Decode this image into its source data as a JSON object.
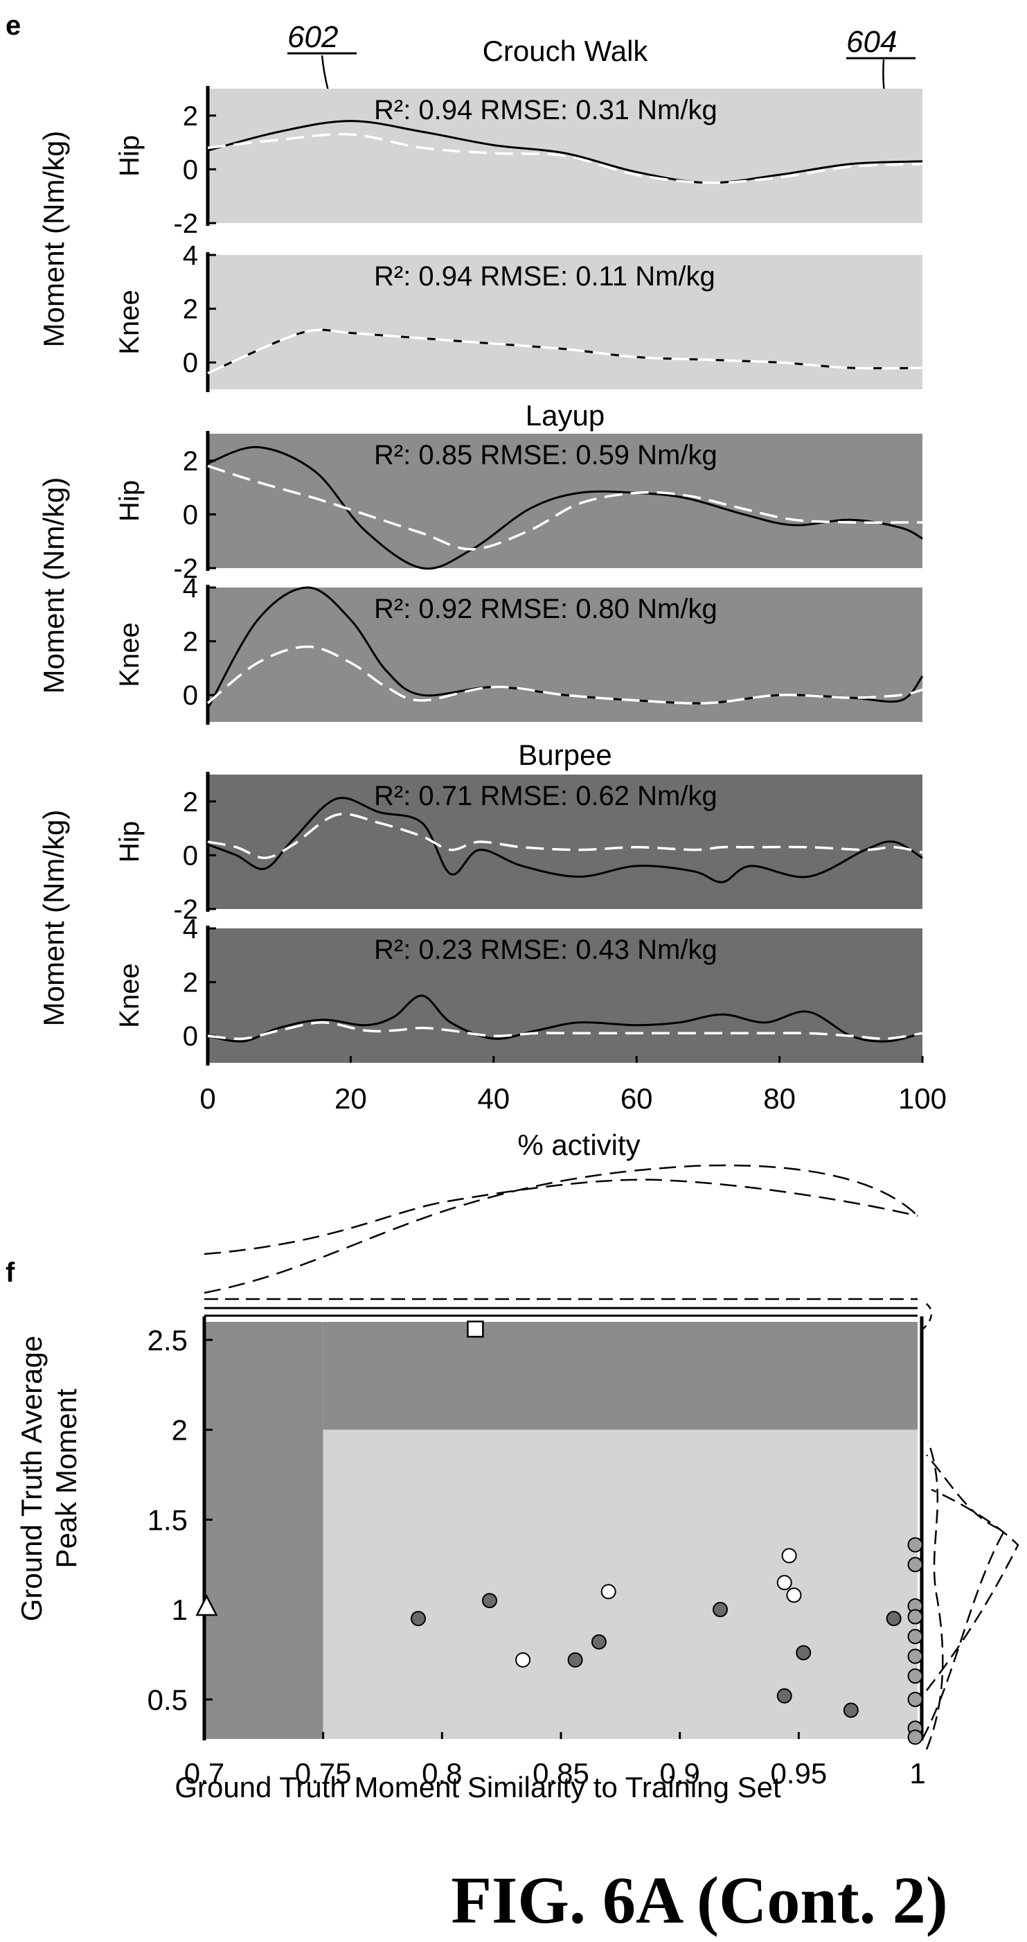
{
  "colors": {
    "light_bg": "#d4d4d4",
    "mid_bg": "#8c8c8c",
    "dark_bg": "#6e6e6e",
    "ground_truth_line": "#000000",
    "predicted_line": "#ffffff"
  },
  "panel_e": {
    "letter": "e",
    "ref_left": "602",
    "ref_right": "604",
    "x_ticks": [
      "0",
      "20",
      "40",
      "60",
      "80",
      "100"
    ],
    "x_label": "% activity",
    "y_label": "Moment (Nm/kg)"
  },
  "panel_f": {
    "letter": "f"
  },
  "figure_label": "FIG. 6A (Cont. 2)",
  "chart_data": [
    {
      "type": "line",
      "activity": "Crouch Walk",
      "joint": "Hip",
      "stat": "R²: 0.94 RMSE: 0.31 Nm/kg",
      "xlim": [
        0,
        100
      ],
      "ylim": [
        -2,
        3
      ],
      "y_ticks": [
        "2",
        "0",
        "-2"
      ],
      "x": [
        0,
        10,
        20,
        30,
        40,
        50,
        60,
        70,
        80,
        90,
        100
      ],
      "series": [
        {
          "values": [
            0.7,
            1.4,
            1.8,
            1.4,
            0.9,
            0.6,
            -0.1,
            -0.5,
            -0.2,
            0.2,
            0.3
          ]
        },
        {
          "values": [
            0.8,
            1.1,
            1.3,
            0.8,
            0.6,
            0.5,
            -0.2,
            -0.5,
            -0.3,
            0.1,
            0.2
          ]
        }
      ]
    },
    {
      "type": "line",
      "activity": "Crouch Walk",
      "joint": "Knee",
      "stat": "R²: 0.94 RMSE: 0.11 Nm/kg",
      "xlim": [
        0,
        100
      ],
      "ylim": [
        -1,
        4
      ],
      "y_ticks": [
        "4",
        "2",
        "0"
      ],
      "x": [
        0,
        10,
        15,
        20,
        30,
        40,
        50,
        60,
        70,
        80,
        90,
        100
      ],
      "series": [
        {
          "values": [
            -0.4,
            0.8,
            1.2,
            1.1,
            0.9,
            0.7,
            0.5,
            0.2,
            0.1,
            0.0,
            -0.2,
            -0.2
          ]
        },
        {
          "values": [
            -0.4,
            0.8,
            1.2,
            1.1,
            0.9,
            0.7,
            0.5,
            0.2,
            0.1,
            0.0,
            -0.2,
            -0.2
          ]
        }
      ]
    },
    {
      "type": "line",
      "activity": "Layup",
      "joint": "Hip",
      "stat": "R²: 0.85 RMSE: 0.59 Nm/kg",
      "xlim": [
        0,
        100
      ],
      "ylim": [
        -2,
        3
      ],
      "y_ticks": [
        "2",
        "0",
        "-2"
      ],
      "x": [
        0,
        7,
        15,
        22,
        30,
        37,
        45,
        52,
        60,
        67,
        75,
        82,
        90,
        97,
        100
      ],
      "series": [
        {
          "values": [
            1.9,
            2.5,
            1.6,
            -0.6,
            -2.0,
            -1.3,
            0.2,
            0.8,
            0.8,
            0.6,
            0.0,
            -0.4,
            -0.2,
            -0.5,
            -0.9
          ]
        },
        {
          "values": [
            1.8,
            1.2,
            0.6,
            0.0,
            -0.7,
            -1.3,
            -0.6,
            0.4,
            0.8,
            0.7,
            0.2,
            -0.2,
            -0.3,
            -0.3,
            -0.3
          ]
        }
      ]
    },
    {
      "type": "line",
      "activity": "Layup",
      "joint": "Knee",
      "stat": "R²: 0.92 RMSE: 0.80 Nm/kg",
      "xlim": [
        0,
        100
      ],
      "ylim": [
        -1,
        4
      ],
      "y_ticks": [
        "4",
        "2",
        "0"
      ],
      "x": [
        0,
        7,
        14,
        20,
        25,
        30,
        40,
        50,
        60,
        70,
        80,
        90,
        97,
        100
      ],
      "series": [
        {
          "values": [
            -0.5,
            2.8,
            4.0,
            2.8,
            0.9,
            0.0,
            0.3,
            0.0,
            -0.2,
            -0.3,
            0.0,
            -0.1,
            -0.2,
            0.7
          ]
        },
        {
          "values": [
            -0.3,
            1.2,
            1.8,
            1.2,
            0.3,
            -0.2,
            0.3,
            0.0,
            -0.2,
            -0.3,
            0.0,
            -0.1,
            0.0,
            0.2
          ]
        }
      ]
    },
    {
      "type": "line",
      "activity": "Burpee",
      "joint": "Hip",
      "stat": "R²: 0.71 RMSE: 0.62 Nm/kg",
      "xlim": [
        0,
        100
      ],
      "ylim": [
        -2,
        3
      ],
      "y_ticks": [
        "2",
        "0",
        "-2"
      ],
      "x": [
        0,
        4,
        8,
        12,
        18,
        24,
        30,
        34,
        38,
        44,
        52,
        60,
        68,
        72,
        76,
        84,
        92,
        96,
        100
      ],
      "series": [
        {
          "values": [
            0.4,
            0.0,
            -0.5,
            0.6,
            2.1,
            1.6,
            1.2,
            -0.7,
            0.2,
            -0.4,
            -0.8,
            -0.4,
            -0.6,
            -1.0,
            -0.4,
            -0.8,
            0.2,
            0.5,
            -0.1
          ]
        },
        {
          "values": [
            0.5,
            0.3,
            -0.1,
            0.4,
            1.5,
            1.2,
            0.7,
            0.2,
            0.5,
            0.3,
            0.2,
            0.3,
            0.2,
            0.3,
            0.3,
            0.3,
            0.2,
            0.3,
            0.1
          ]
        }
      ]
    },
    {
      "type": "line",
      "activity": "Burpee",
      "joint": "Knee",
      "stat": "R²: 0.23 RMSE: 0.43 Nm/kg",
      "xlim": [
        0,
        100
      ],
      "ylim": [
        -1,
        4
      ],
      "y_ticks": [
        "4",
        "2",
        "0"
      ],
      "x": [
        0,
        5,
        10,
        16,
        22,
        26,
        30,
        34,
        40,
        46,
        52,
        60,
        66,
        72,
        78,
        84,
        90,
        95,
        100
      ],
      "series": [
        {
          "values": [
            0.0,
            -0.2,
            0.3,
            0.6,
            0.4,
            0.7,
            1.5,
            0.5,
            -0.1,
            0.2,
            0.5,
            0.4,
            0.5,
            0.8,
            0.5,
            0.9,
            0.0,
            -0.2,
            0.1
          ]
        },
        {
          "values": [
            0.0,
            -0.1,
            0.2,
            0.5,
            0.2,
            0.2,
            0.3,
            0.2,
            0.0,
            0.1,
            0.1,
            0.1,
            0.1,
            0.1,
            0.1,
            0.1,
            0.0,
            -0.1,
            0.1
          ]
        }
      ]
    },
    {
      "type": "scatter",
      "xlabel": "Ground Truth Moment Similarity to Training Set",
      "ylabel": [
        "Ground Truth Average",
        "Peak Moment"
      ],
      "xlim": [
        0.7,
        1.0
      ],
      "ylim": [
        0.28,
        2.6
      ],
      "x_ticks": [
        "0.7",
        "0.75",
        "0.8",
        "0.85",
        "0.9",
        "0.95",
        "1"
      ],
      "y_ticks": [
        "2.5",
        "2",
        "1.5",
        "1",
        "0.5"
      ],
      "regions": {
        "x_split": 0.75,
        "y_split": 2.0
      },
      "series": [
        {
          "marker": "circle-dark",
          "points": [
            [
              0.79,
              0.95
            ],
            [
              0.82,
              1.05
            ],
            [
              0.856,
              0.72
            ],
            [
              0.866,
              0.82
            ],
            [
              0.917,
              1.0
            ],
            [
              0.944,
              0.52
            ],
            [
              0.952,
              0.76
            ],
            [
              0.972,
              0.44
            ],
            [
              0.99,
              0.95
            ]
          ]
        },
        {
          "marker": "circle-white",
          "points": [
            [
              0.834,
              0.72
            ],
            [
              0.87,
              1.1
            ],
            [
              0.944,
              1.15
            ],
            [
              0.946,
              1.3
            ],
            [
              0.948,
              1.08
            ]
          ]
        },
        {
          "marker": "circle-mid",
          "points": [
            [
              0.999,
              1.36
            ],
            [
              0.999,
              1.25
            ],
            [
              0.999,
              1.02
            ],
            [
              0.999,
              0.96
            ],
            [
              0.999,
              0.85
            ],
            [
              0.999,
              0.74
            ],
            [
              0.999,
              0.63
            ],
            [
              0.999,
              0.5
            ],
            [
              0.999,
              0.34
            ],
            [
              0.999,
              0.29
            ]
          ]
        },
        {
          "marker": "triangle",
          "points": [
            [
              0.701,
              1.02
            ]
          ]
        },
        {
          "marker": "square",
          "points": [
            [
              0.814,
              2.56
            ]
          ]
        }
      ]
    }
  ]
}
